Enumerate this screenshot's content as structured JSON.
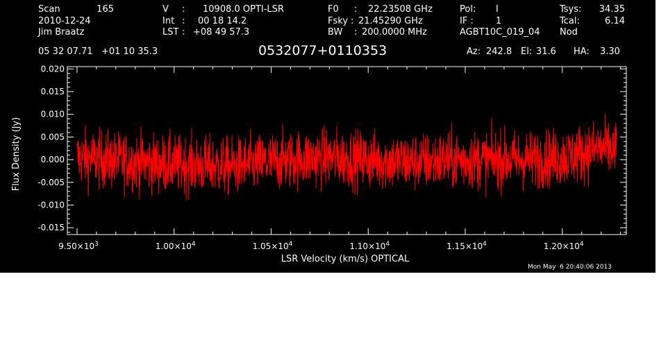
{
  "header": {
    "scan_label": "Scan",
    "scan_number": "165",
    "date": "2010-12-24",
    "observer": "Jim Braatz",
    "v_label": "V",
    "v_value": "10908.0 OPTI-LSR",
    "int_label": "Int",
    "int_value": "00 18 14.2",
    "lst_label": "LST",
    "lst_value": "+08 49 57.3",
    "f0_label": "F0",
    "f0_value": "22.23508 GHz",
    "fsky_label": "Fsky",
    "fsky_value": "21.45290 GHz",
    "bw_label": "BW",
    "bw_value": "200.0000 MHz",
    "pol_label": "Pol:",
    "pol_value": "I",
    "if_label": "IF :",
    "if_value": "1",
    "project": "AGBT10C_019_04",
    "tsys_label": "Tsys:",
    "tsys_value": "34.35",
    "tcal_label": "Tcal:",
    "tcal_value": "6.14",
    "proc": "Nod",
    "coords": "05 32 07.71   +01 10 35.3",
    "source": "0532077+0110353",
    "az_label": "Az:",
    "az_value": "242.8",
    "el_label": "El:",
    "el_value": "31.6",
    "ha_label": "HA:",
    "ha_value": "3.30"
  },
  "footer": {
    "timestamp": "Mon May  6 20:40:06 2013"
  },
  "colors": {
    "background": "#000000",
    "axes": "#ffffff",
    "trace": "#ff0000"
  },
  "chart_data": {
    "type": "line",
    "xlabel": "LSR Velocity (km/s) OPTICAL",
    "ylabel": "Flux Density (Jy)",
    "xlim": [
      9450,
      12330
    ],
    "ylim": [
      -0.0165,
      0.0205
    ],
    "x_ticks": [
      {
        "value": 9500,
        "mantissa": "9.50",
        "exponent": "3"
      },
      {
        "value": 10000,
        "mantissa": "1.00",
        "exponent": "4"
      },
      {
        "value": 10500,
        "mantissa": "1.05",
        "exponent": "4"
      },
      {
        "value": 11000,
        "mantissa": "1.10",
        "exponent": "4"
      },
      {
        "value": 11500,
        "mantissa": "1.15",
        "exponent": "4"
      },
      {
        "value": 12000,
        "mantissa": "1.20",
        "exponent": "4"
      }
    ],
    "y_ticks": [
      {
        "value": 0.02,
        "label": "0.020"
      },
      {
        "value": 0.015,
        "label": "0.015"
      },
      {
        "value": 0.01,
        "label": "0.010"
      },
      {
        "value": 0.005,
        "label": "0.005"
      },
      {
        "value": 0.0,
        "label": "0.000"
      },
      {
        "value": -0.005,
        "label": "-0.005"
      },
      {
        "value": -0.01,
        "label": "-0.010"
      },
      {
        "value": -0.015,
        "label": "-0.015"
      }
    ],
    "series": [
      {
        "x_start": 9500,
        "x_end": 12280,
        "y_min": -0.0125,
        "y_max": 0.0135,
        "baseline": [
          [
            9500,
            0.0005
          ],
          [
            9800,
            -0.0005
          ],
          [
            10000,
            -0.001
          ],
          [
            10300,
            -0.0015
          ],
          [
            10600,
            0.0
          ],
          [
            10800,
            0.0005
          ],
          [
            11000,
            0.0
          ],
          [
            11200,
            -0.0005
          ],
          [
            11500,
            0.0
          ],
          [
            11800,
            0.0
          ],
          [
            12000,
            0.0005
          ],
          [
            12200,
            0.0025
          ],
          [
            12280,
            0.002
          ]
        ],
        "rms": 0.0035,
        "n_points": 1900
      }
    ]
  }
}
